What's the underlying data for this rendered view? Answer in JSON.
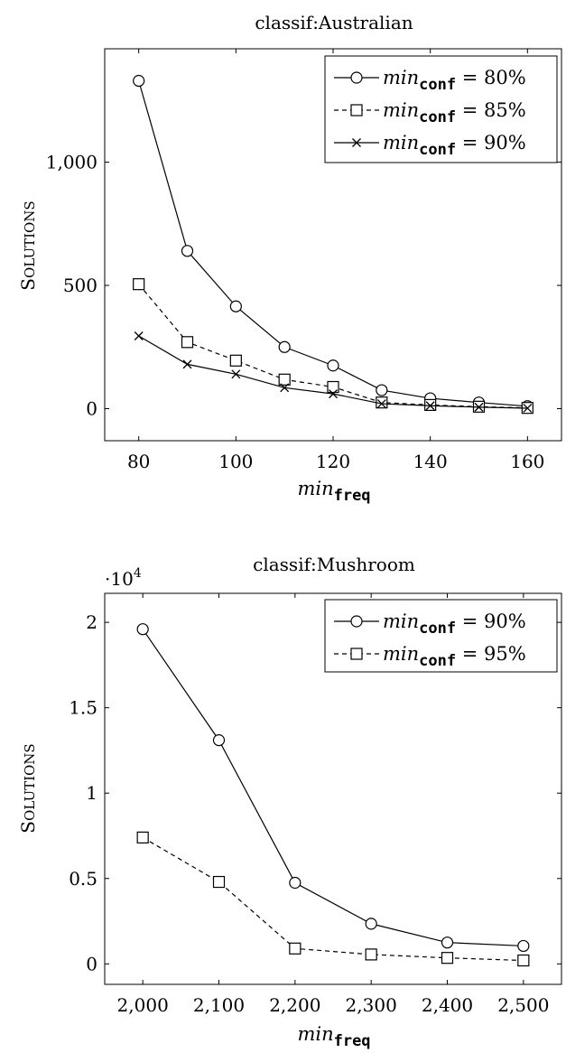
{
  "chart_data": [
    {
      "type": "line",
      "title": "classif:Australian",
      "xlabel_italic": "min",
      "xlabel_sub": "freq",
      "ylabel": "Solutions",
      "xlim": [
        73,
        167
      ],
      "ylim": [
        -130,
        1460
      ],
      "x": [
        80,
        90,
        100,
        110,
        120,
        130,
        140,
        150,
        160
      ],
      "xticks": [
        80,
        100,
        120,
        140,
        160
      ],
      "xtick_labels": [
        "80",
        "100",
        "120",
        "140",
        "160"
      ],
      "yticks": [
        0,
        500,
        1000
      ],
      "ytick_labels": [
        "0",
        "500",
        "1,000"
      ],
      "grid": false,
      "legend_position": "top-right",
      "series": [
        {
          "name_italic": "min",
          "name_sub": "conf",
          "name_rest": " = 80%",
          "marker": "circle",
          "dash": "solid",
          "values": [
            1330,
            640,
            415,
            250,
            175,
            75,
            42,
            25,
            10
          ]
        },
        {
          "name_italic": "min",
          "name_sub": "conf",
          "name_rest": " = 85%",
          "marker": "square",
          "dash": "dashed",
          "values": [
            505,
            270,
            195,
            118,
            88,
            25,
            15,
            8,
            3
          ]
        },
        {
          "name_italic": "min",
          "name_sub": "conf",
          "name_rest": " = 90%",
          "marker": "cross",
          "dash": "solid",
          "values": [
            295,
            180,
            140,
            85,
            60,
            20,
            12,
            6,
            2
          ]
        }
      ]
    },
    {
      "type": "line",
      "title": "classif:Mushroom",
      "scale_label": "·10",
      "scale_exp": "4",
      "xlabel_italic": "min",
      "xlabel_sub": "freq",
      "ylabel": "Solutions",
      "xlim": [
        1950,
        2550
      ],
      "ylim": [
        -1200,
        21700
      ],
      "x": [
        2000,
        2100,
        2200,
        2300,
        2400,
        2500
      ],
      "xticks": [
        2000,
        2100,
        2200,
        2300,
        2400,
        2500
      ],
      "xtick_labels": [
        "2,000",
        "2,100",
        "2,200",
        "2,300",
        "2,400",
        "2,500"
      ],
      "yticks": [
        0,
        5000,
        10000,
        15000,
        20000
      ],
      "ytick_labels": [
        "0",
        "0.5",
        "1",
        "1.5",
        "2"
      ],
      "grid": false,
      "legend_position": "top-right",
      "series": [
        {
          "name_italic": "min",
          "name_sub": "conf",
          "name_rest": " = 90%",
          "marker": "circle",
          "dash": "solid",
          "values": [
            19600,
            13100,
            4750,
            2350,
            1250,
            1050
          ]
        },
        {
          "name_italic": "min",
          "name_sub": "conf",
          "name_rest": " = 95%",
          "marker": "square",
          "dash": "dashed",
          "values": [
            7400,
            4800,
            900,
            550,
            350,
            200
          ]
        }
      ]
    }
  ]
}
